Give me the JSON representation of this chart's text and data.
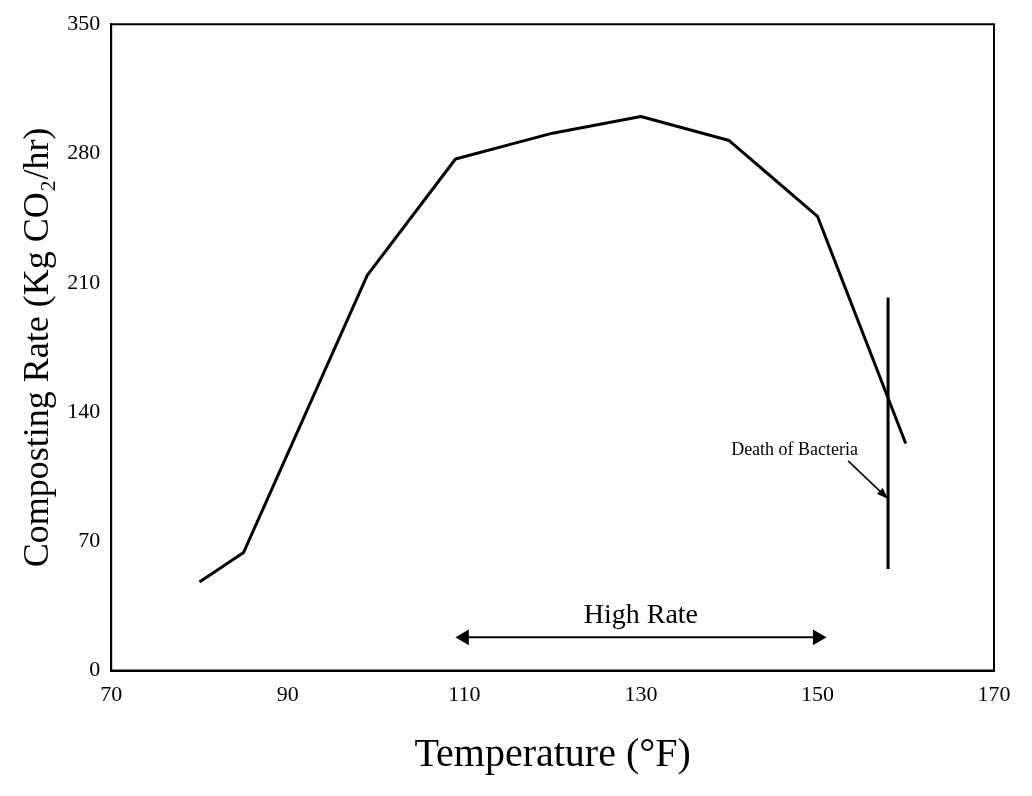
{
  "chart_data": {
    "type": "line",
    "xlabel": "Temperature (°F)",
    "ylabel": "Composting Rate (Kg CO₂/hr)",
    "xlim": [
      70,
      170
    ],
    "xticks": [
      70,
      90,
      110,
      130,
      150,
      170
    ],
    "ylim": [
      0,
      350
    ],
    "yticks": [
      0,
      70,
      140,
      210,
      280,
      350
    ],
    "series": [
      {
        "x": [
          80,
          85,
          99,
          109,
          120,
          130,
          140,
          150,
          160
        ],
        "values": [
          48,
          64,
          214,
          277,
          291,
          300,
          287,
          246,
          123
        ],
        "color": "#000000"
      },
      {
        "x": [
          158,
          158
        ],
        "values": [
          55,
          202
        ],
        "color": "#000000"
      },
      {
        "x": [
          110,
          150
        ],
        "values": [
          18,
          18
        ],
        "color": "#000000",
        "marker": "triangle"
      }
    ],
    "annotations": [
      {
        "text": "High Rate",
        "x": 130,
        "y": 18
      },
      {
        "text": "Death of Bacteria",
        "x": 158,
        "y": 93
      }
    ],
    "grid": false,
    "legend": false,
    "marker": "none"
  }
}
